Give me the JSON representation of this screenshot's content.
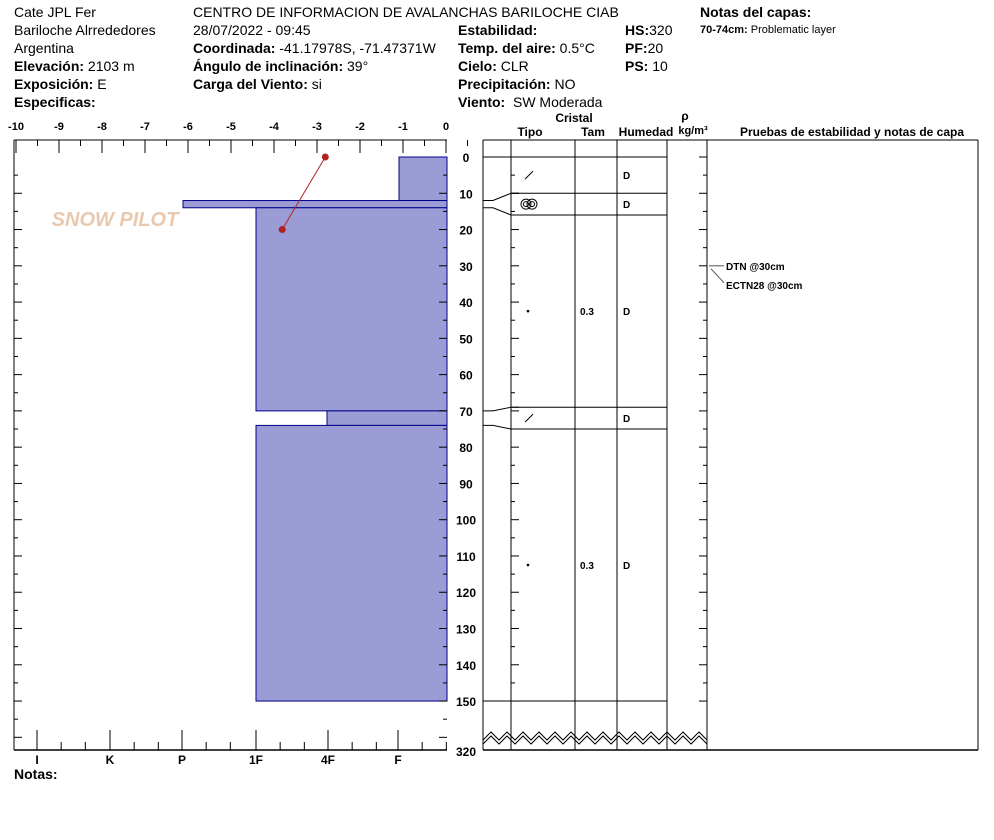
{
  "header": {
    "observer": "Cate JPL Fer",
    "location": "Bariloche Alrrededores",
    "country": "Argentina",
    "elevation_label": "Elevación:",
    "elevation": "2103 m",
    "aspect_label": "Exposición:",
    "aspect": "E",
    "specifics_label": "Especificas:",
    "organization": "CENTRO DE INFORMACION DE AVALANCHAS BARILOCHE CIAB",
    "datetime": "28/07/2022 - 09:45",
    "coord_label": "Coordinada:",
    "coord": "-41.17978S, -71.47371W",
    "slope_label": "Ángulo de inclinación:",
    "slope": "39°",
    "windload_label": "Carga del Viento:",
    "windload": "si",
    "stability_label": "Estabilidad:",
    "airtemp_label": "Temp. del aire:",
    "airtemp": "0.5°C",
    "sky_label": "Cielo:",
    "sky": "CLR",
    "precip_label": "Precipitación:",
    "precip": "NO",
    "wind_label": "Viento:",
    "wind": "SW Moderada",
    "hs_label": "HS:",
    "hs": "320",
    "pf_label": "PF:",
    "pf": "20",
    "ps_label": "PS:",
    "ps": "10",
    "layer_notes_title": "Notas del capas:",
    "layer_note_range": "70-74cm:",
    "layer_note_text": "Problematic layer"
  },
  "axes": {
    "temp_ticks": [
      "-10",
      "-9",
      "-8",
      "-7",
      "-6",
      "-5",
      "-4",
      "-3",
      "-2",
      "-1",
      "0"
    ],
    "hardness_ticks": [
      "I",
      "K",
      "P",
      "1F",
      "4F",
      "F"
    ],
    "depth_ticks": [
      "0",
      "10",
      "20",
      "30",
      "40",
      "50",
      "60",
      "70",
      "80",
      "90",
      "100",
      "110",
      "120",
      "130",
      "140",
      "150"
    ],
    "total_depth": "320"
  },
  "columns": {
    "crystal": "Cristal",
    "type": "Tipo",
    "size": "Tam",
    "moisture": "Humedad",
    "rho": "ρ",
    "density_unit": "kg/m³",
    "tests": "Pruebas de estabilidad y notas de capa"
  },
  "colors": {
    "layer_fill": "#9b9bd5",
    "layer_stroke": "#00008b",
    "temp": "#b22222"
  },
  "layers": [
    {
      "top": 0,
      "bottom": 12,
      "hardness": "F",
      "grain_icon": "decomposing-slash",
      "size": "",
      "moisture": "D"
    },
    {
      "top": 12,
      "bottom": 14,
      "hardness": "P",
      "grain_icon": "rounded-grains",
      "size": "",
      "moisture": "D"
    },
    {
      "top": 14,
      "bottom": 70,
      "hardness": "1F",
      "grain_icon": "dot",
      "size": "0.3",
      "moisture": "D"
    },
    {
      "top": 70,
      "bottom": 74,
      "hardness": "4F",
      "grain_icon": "decomposing-slash",
      "size": "",
      "moisture": "D"
    },
    {
      "top": 74,
      "bottom": 150,
      "hardness": "1F",
      "grain_icon": "dot",
      "size": "0.3",
      "moisture": "D"
    }
  ],
  "table_rows": [
    {
      "top": 0,
      "bottom": 10,
      "type_icon": "decomposing-slash",
      "size": "",
      "moisture": "D"
    },
    {
      "top": 10,
      "bottom": 16,
      "type_icon": "rounded-grains",
      "size": "",
      "moisture": "D"
    },
    {
      "top": 16,
      "bottom": 69,
      "type_icon": "dot",
      "size": "0.3",
      "moisture": "D"
    },
    {
      "top": 69,
      "bottom": 75,
      "type_icon": "decomposing-slash",
      "size": "",
      "moisture": "D"
    },
    {
      "top": 75,
      "bottom": 150,
      "type_icon": "dot",
      "size": "0.3",
      "moisture": "D"
    }
  ],
  "temperatures": [
    {
      "depth": 0,
      "temp": -2.8
    },
    {
      "depth": 20,
      "temp": -3.8
    }
  ],
  "tests": [
    {
      "label": "DTN @30cm",
      "depth": 30
    },
    {
      "label": "ECTN28 @30cm",
      "depth": 30
    }
  ],
  "notes_label": "Notas:",
  "logo_text": "SNOW PILOT"
}
